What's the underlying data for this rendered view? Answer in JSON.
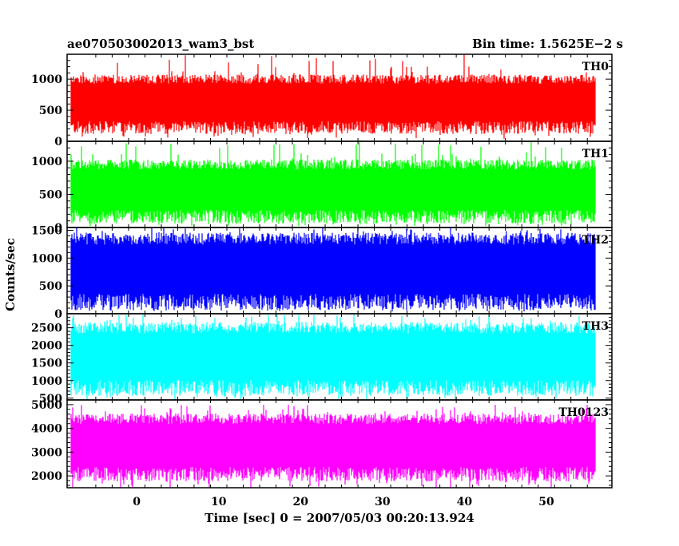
{
  "chart_data": {
    "type": "line",
    "title_left": "ae070503002013_wam3_bst",
    "title_right": "Bin time: 1.5625E−2 s",
    "xlabel": "Time [sec] 0 = 2007/05/03 00:20:13.924",
    "ylabel": "Counts/sec",
    "xlim": [
      -8.5,
      58
    ],
    "data_x_range": [
      -8,
      56
    ],
    "x_ticks": [
      0,
      10,
      20,
      30,
      40,
      50
    ],
    "x_tick_labels": [
      "0",
      "10",
      "20",
      "30",
      "40",
      "50"
    ],
    "grid": false,
    "panels": [
      {
        "name": "TH0",
        "color": "#ff0000",
        "ylim": [
          0,
          1400
        ],
        "y_ticks": [
          0,
          500,
          1000
        ],
        "y_tick_labels": [
          "0",
          "500",
          "1000"
        ],
        "typical_low": 180,
        "typical_high": 1000,
        "min": 40,
        "max": 1400
      },
      {
        "name": "TH1",
        "color": "#00ff00",
        "ylim": [
          0,
          1300
        ],
        "y_ticks": [
          0,
          500,
          1000
        ],
        "y_tick_labels": [
          "0",
          "500",
          "1000"
        ],
        "typical_low": 120,
        "typical_high": 950,
        "min": 20,
        "max": 1300
      },
      {
        "name": "TH2",
        "color": "#0000ff",
        "ylim": [
          0,
          1550
        ],
        "y_ticks": [
          0,
          500,
          1000,
          1500
        ],
        "y_tick_labels": [
          "0",
          "500",
          "1000",
          "1500"
        ],
        "typical_low": 150,
        "typical_high": 1350,
        "min": 40,
        "max": 1550
      },
      {
        "name": "TH3",
        "color": "#00ffff",
        "ylim": [
          450,
          2900
        ],
        "y_ticks": [
          500,
          1000,
          1500,
          2000,
          2500
        ],
        "y_tick_labels": [
          "500",
          "1000",
          "1500",
          "2000",
          "2500"
        ],
        "typical_low": 700,
        "typical_high": 2500,
        "min": 450,
        "max": 2900
      },
      {
        "name": "TH0123",
        "color": "#ff00ff",
        "ylim": [
          1500,
          5200
        ],
        "y_ticks": [
          2000,
          3000,
          4000,
          5000
        ],
        "y_tick_labels": [
          "2000",
          "3000",
          "4000",
          "5000"
        ],
        "typical_low": 1950,
        "typical_high": 4400,
        "min": 1500,
        "max": 5000
      }
    ]
  }
}
